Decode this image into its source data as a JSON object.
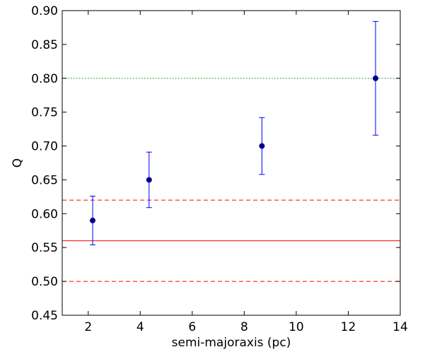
{
  "chart_data": {
    "type": "scatter",
    "title": "",
    "xlabel": "semi-majoraxis (pc)",
    "ylabel": "Q",
    "xlim": [
      1,
      14
    ],
    "ylim": [
      0.45,
      0.9
    ],
    "xticks": [
      2,
      4,
      6,
      8,
      10,
      12,
      14
    ],
    "xtick_labels": [
      "2",
      "4",
      "6",
      "8",
      "10",
      "12",
      "14"
    ],
    "yticks": [
      0.45,
      0.5,
      0.55,
      0.6,
      0.65,
      0.7,
      0.75,
      0.8,
      0.85,
      0.9
    ],
    "ytick_labels": [
      "0.45",
      "0.50",
      "0.55",
      "0.60",
      "0.65",
      "0.70",
      "0.75",
      "0.80",
      "0.85",
      "0.90"
    ],
    "grid": false,
    "series": [
      {
        "color": "#00008b",
        "error_color": "#0000ff",
        "points": [
          {
            "x": 2.17,
            "y": 0.59,
            "ylow": 0.554,
            "yhigh": 0.626
          },
          {
            "x": 4.34,
            "y": 0.65,
            "ylow": 0.609,
            "yhigh": 0.691
          },
          {
            "x": 8.68,
            "y": 0.7,
            "ylow": 0.658,
            "yhigh": 0.742
          },
          {
            "x": 13.05,
            "y": 0.8,
            "ylow": 0.716,
            "yhigh": 0.884
          }
        ]
      }
    ],
    "reference_lines": [
      {
        "y": 0.8,
        "color": "#008000",
        "style": "dotted"
      },
      {
        "y": 0.62,
        "color": "#ff0000",
        "style": "dashed"
      },
      {
        "y": 0.56,
        "color": "#ff0000",
        "style": "solid"
      },
      {
        "y": 0.5,
        "color": "#ff0000",
        "style": "dashed"
      }
    ]
  }
}
